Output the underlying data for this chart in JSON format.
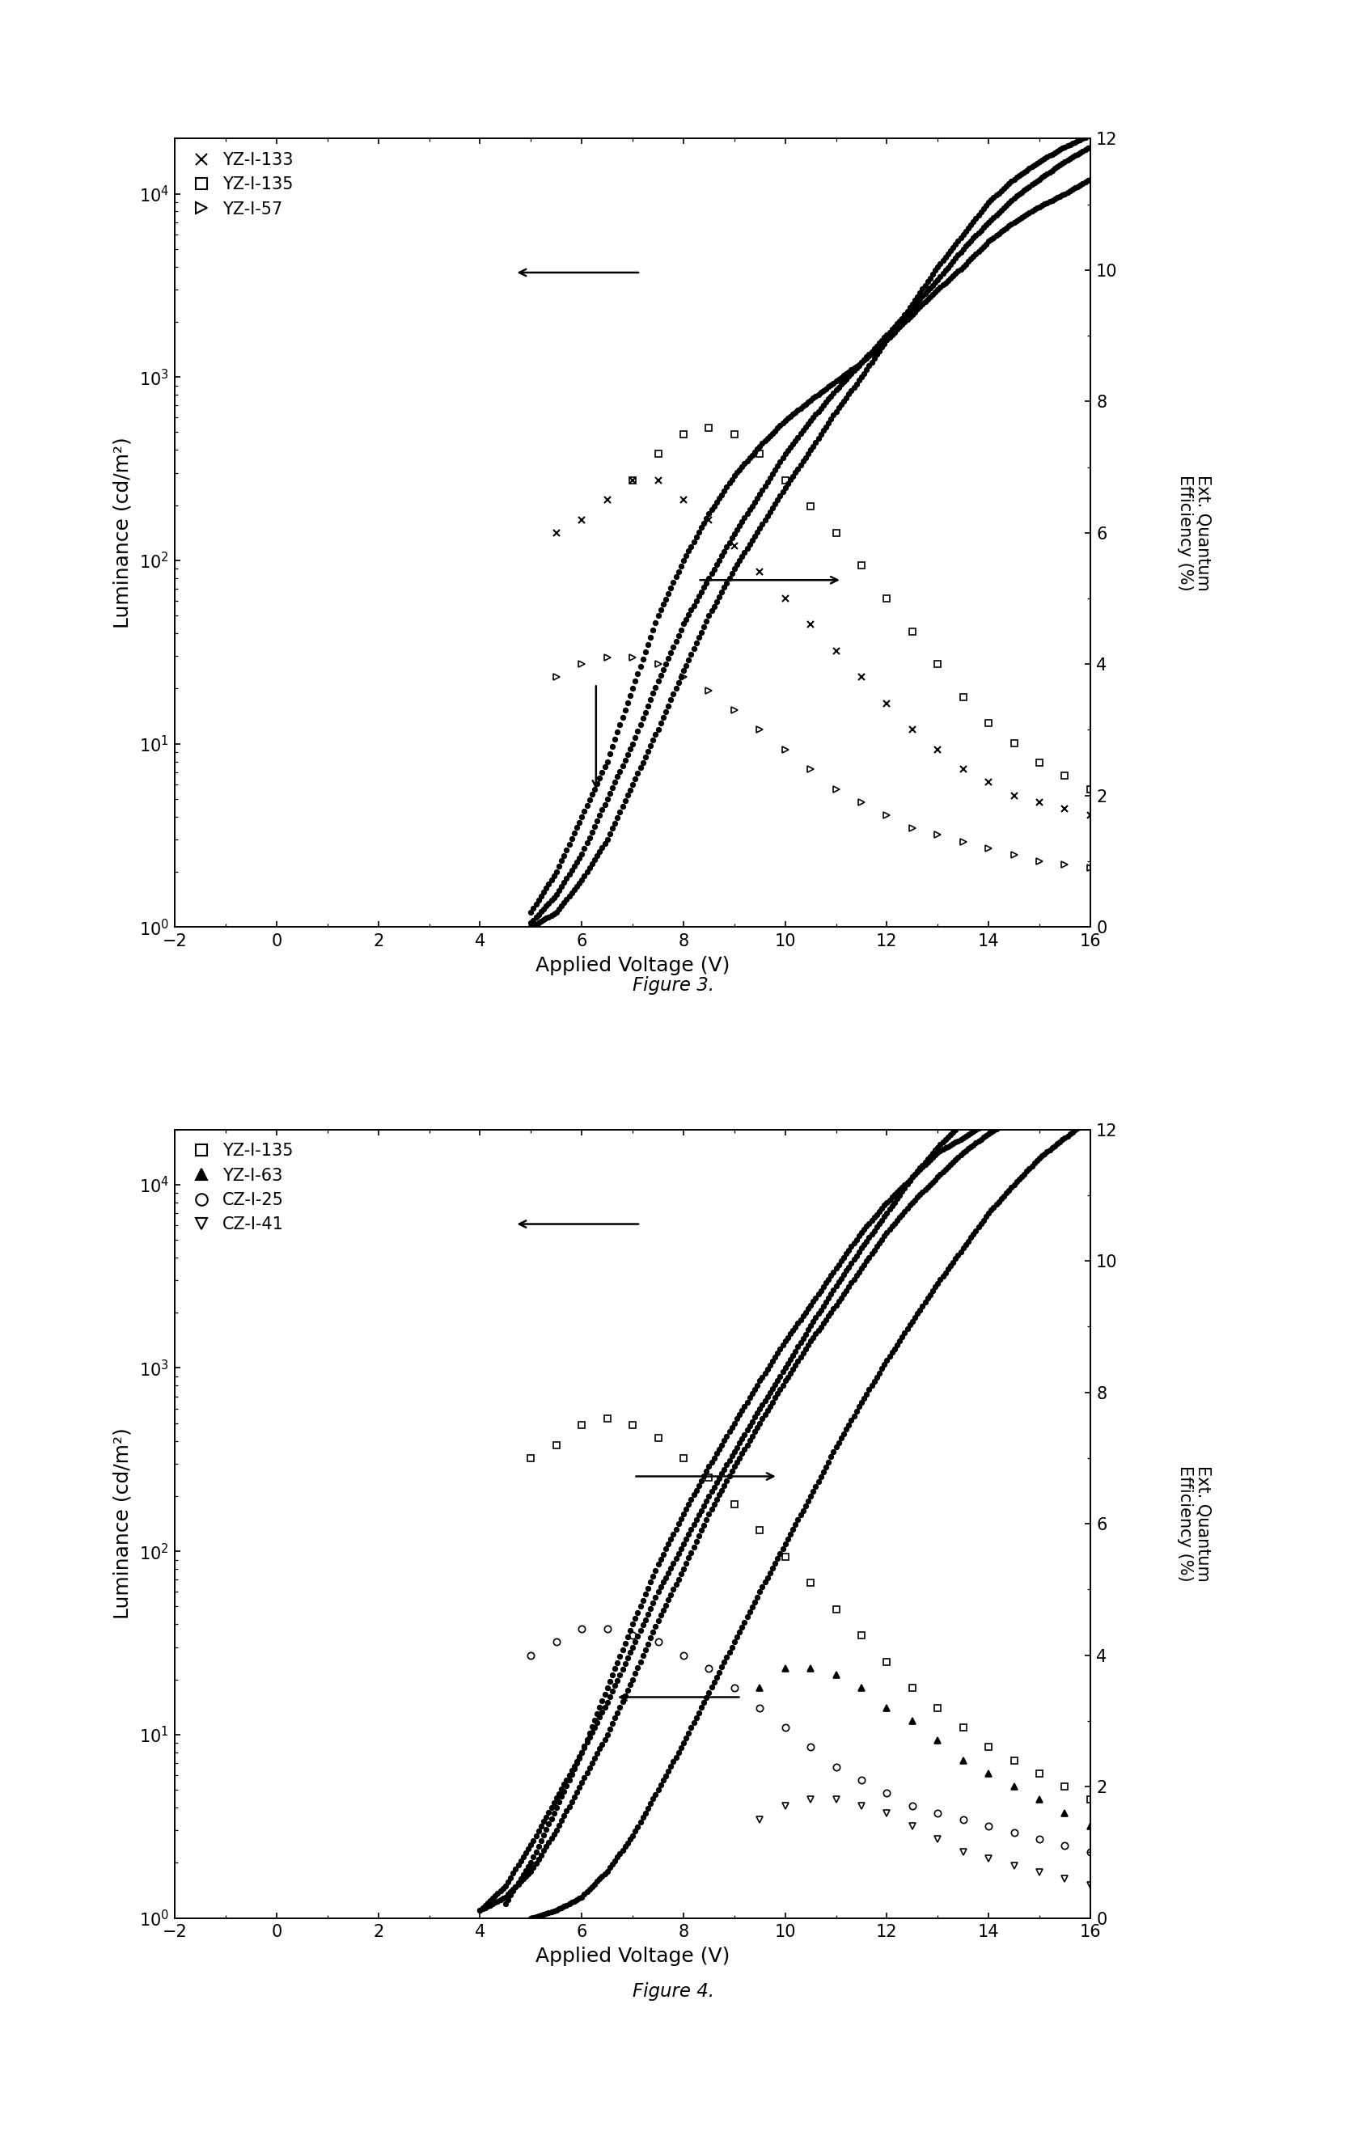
{
  "fig3": {
    "title": "Figure 3.",
    "xlabel": "Applied Voltage (V)",
    "ylabel_left": "Luminance (cd/m²)",
    "ylabel_right": "Ext. Quantum\nEfficiency (%)",
    "xlim": [
      -2,
      16
    ],
    "ylim_left": [
      1,
      20000
    ],
    "ylim_right": [
      0,
      12
    ],
    "legend_labels": [
      "YZ-I-133",
      "YZ-I-135",
      "YZ-I-57"
    ],
    "lum_133_x": [
      5.0,
      5.5,
      6.0,
      6.5,
      7.0,
      7.5,
      8.0,
      8.5,
      9.0,
      9.5,
      10.0,
      10.5,
      11.0,
      11.5,
      12.0,
      12.5,
      13.0,
      13.5,
      14.0,
      14.5,
      15.0,
      15.5,
      16.0
    ],
    "lum_133_y": [
      1.2,
      2.0,
      4.0,
      8.0,
      20,
      50,
      100,
      180,
      290,
      420,
      580,
      750,
      950,
      1200,
      1600,
      2200,
      3000,
      4000,
      5500,
      7000,
      8500,
      10000,
      12000
    ],
    "lum_135_x": [
      5.0,
      5.5,
      6.0,
      6.5,
      7.0,
      7.5,
      8.0,
      8.5,
      9.0,
      9.5,
      10.0,
      10.5,
      11.0,
      11.5,
      12.0,
      12.5,
      13.0,
      13.5,
      14.0,
      14.5,
      15.0,
      15.5,
      16.0
    ],
    "lum_135_y": [
      1.05,
      1.5,
      2.5,
      5.0,
      10,
      22,
      45,
      80,
      140,
      230,
      380,
      580,
      850,
      1200,
      1700,
      2400,
      3400,
      5000,
      7000,
      9500,
      12000,
      15000,
      18000
    ],
    "lum_57_x": [
      5.0,
      5.5,
      6.0,
      6.5,
      7.0,
      7.5,
      8.0,
      8.5,
      9.0,
      9.5,
      10.0,
      10.5,
      11.0,
      11.5,
      12.0,
      12.5,
      13.0,
      13.5,
      14.0,
      14.5,
      15.0,
      15.5,
      16.0
    ],
    "lum_57_y": [
      1.0,
      1.2,
      1.8,
      3.0,
      6.0,
      12,
      25,
      50,
      90,
      150,
      250,
      400,
      650,
      1000,
      1600,
      2500,
      4000,
      6000,
      9000,
      12000,
      15000,
      18000,
      21000
    ],
    "eqe_133_x": [
      5.5,
      6.0,
      6.5,
      7.0,
      7.5,
      8.0,
      8.5,
      9.0,
      9.5,
      10.0,
      10.5,
      11.0,
      11.5,
      12.0,
      12.5,
      13.0,
      13.5,
      14.0,
      14.5,
      15.0,
      15.5,
      16.0
    ],
    "eqe_133_y": [
      6.0,
      6.2,
      6.5,
      6.8,
      6.8,
      6.5,
      6.2,
      5.8,
      5.4,
      5.0,
      4.6,
      4.2,
      3.8,
      3.4,
      3.0,
      2.7,
      2.4,
      2.2,
      2.0,
      1.9,
      1.8,
      1.7
    ],
    "eqe_135_x": [
      7.0,
      7.5,
      8.0,
      8.5,
      9.0,
      9.5,
      10.0,
      10.5,
      11.0,
      11.5,
      12.0,
      12.5,
      13.0,
      13.5,
      14.0,
      14.5,
      15.0,
      15.5,
      16.0
    ],
    "eqe_135_y": [
      6.8,
      7.2,
      7.5,
      7.6,
      7.5,
      7.2,
      6.8,
      6.4,
      6.0,
      5.5,
      5.0,
      4.5,
      4.0,
      3.5,
      3.1,
      2.8,
      2.5,
      2.3,
      2.1
    ],
    "eqe_57_x": [
      5.5,
      6.0,
      6.5,
      7.0,
      7.5,
      8.0,
      8.5,
      9.0,
      9.5,
      10.0,
      10.5,
      11.0,
      11.5,
      12.0,
      12.5,
      13.0,
      13.5,
      14.0,
      14.5,
      15.0,
      15.5,
      16.0
    ],
    "eqe_57_y": [
      3.8,
      4.0,
      4.1,
      4.1,
      4.0,
      3.8,
      3.6,
      3.3,
      3.0,
      2.7,
      2.4,
      2.1,
      1.9,
      1.7,
      1.5,
      1.4,
      1.3,
      1.2,
      1.1,
      1.0,
      0.95,
      0.9
    ]
  },
  "fig4": {
    "title": "Figure 4.",
    "xlabel": "Applied Voltage (V)",
    "ylabel_left": "Luminance (cd/m²)",
    "ylabel_right": "Ext. Quantum\nEfficiency (%)",
    "xlim": [
      -2,
      16
    ],
    "ylim_left": [
      1,
      20000
    ],
    "ylim_right": [
      0,
      12
    ],
    "legend_labels": [
      "YZ-I-135",
      "YZ-I-63",
      "CZ-I-25",
      "CZ-I-41"
    ],
    "lum_135_x": [
      4.5,
      5.0,
      5.5,
      6.0,
      6.5,
      7.0,
      7.5,
      8.0,
      8.5,
      9.0,
      9.5,
      10.0,
      10.5,
      11.0,
      11.5,
      12.0,
      12.5,
      13.0,
      13.5,
      14.0,
      14.5,
      15.0,
      15.5,
      16.0
    ],
    "lum_135_y": [
      1.2,
      2.0,
      4.0,
      8.0,
      18,
      40,
      85,
      160,
      290,
      500,
      850,
      1400,
      2200,
      3500,
      5500,
      8000,
      11000,
      15000,
      18000,
      22000,
      26000,
      30000,
      35000,
      40000
    ],
    "lum_63_x": [
      4.0,
      4.5,
      5.0,
      5.5,
      6.0,
      6.5,
      7.0,
      7.5,
      8.0,
      8.5,
      9.0,
      9.5,
      10.0,
      10.5,
      11.0,
      11.5,
      12.0,
      12.5,
      13.0,
      13.5,
      14.0,
      14.5,
      15.0,
      15.5,
      16.0
    ],
    "lum_63_y": [
      1.1,
      1.5,
      2.5,
      4.5,
      8.0,
      15,
      30,
      60,
      110,
      200,
      350,
      600,
      1000,
      1700,
      2800,
      4500,
      7000,
      11000,
      16000,
      22000,
      29000,
      36000,
      43000,
      50000,
      58000
    ],
    "lum_25_x": [
      4.0,
      4.5,
      5.0,
      5.5,
      6.0,
      6.5,
      7.0,
      7.5,
      8.0,
      8.5,
      9.0,
      9.5,
      10.0,
      10.5,
      11.0,
      11.5,
      12.0,
      12.5,
      13.0,
      13.5,
      14.0,
      14.5,
      15.0,
      15.5,
      16.0
    ],
    "lum_25_y": [
      1.1,
      1.3,
      1.8,
      3.0,
      5.5,
      10,
      20,
      42,
      80,
      160,
      290,
      500,
      850,
      1400,
      2200,
      3500,
      5500,
      8000,
      11000,
      15000,
      19000,
      23000,
      27000,
      31000,
      35000
    ],
    "lum_41_x": [
      5.0,
      5.5,
      6.0,
      6.5,
      7.0,
      7.5,
      8.0,
      8.5,
      9.0,
      9.5,
      10.0,
      10.5,
      11.0,
      11.5,
      12.0,
      12.5,
      13.0,
      13.5,
      14.0,
      14.5,
      15.0,
      15.5,
      16.0
    ],
    "lum_41_y": [
      1.0,
      1.1,
      1.3,
      1.8,
      2.8,
      5.0,
      9.0,
      17,
      32,
      60,
      110,
      200,
      370,
      650,
      1100,
      1800,
      2900,
      4500,
      7000,
      10000,
      14000,
      18000,
      23000
    ],
    "eqe_135_x": [
      5.0,
      5.5,
      6.0,
      6.5,
      7.0,
      7.5,
      8.0,
      8.5,
      9.0,
      9.5,
      10.0,
      10.5,
      11.0,
      11.5,
      12.0,
      12.5,
      13.0,
      13.5,
      14.0,
      14.5,
      15.0,
      15.5,
      16.0
    ],
    "eqe_135_y": [
      7.0,
      7.2,
      7.5,
      7.6,
      7.5,
      7.3,
      7.0,
      6.7,
      6.3,
      5.9,
      5.5,
      5.1,
      4.7,
      4.3,
      3.9,
      3.5,
      3.2,
      2.9,
      2.6,
      2.4,
      2.2,
      2.0,
      1.8
    ],
    "eqe_63_x": [
      9.5,
      10.0,
      10.5,
      11.0,
      11.5,
      12.0,
      12.5,
      13.0,
      13.5,
      14.0,
      14.5,
      15.0,
      15.5,
      16.0
    ],
    "eqe_63_y": [
      3.5,
      3.8,
      3.8,
      3.7,
      3.5,
      3.2,
      3.0,
      2.7,
      2.4,
      2.2,
      2.0,
      1.8,
      1.6,
      1.4
    ],
    "eqe_25_x": [
      5.0,
      5.5,
      6.0,
      6.5,
      7.0,
      7.5,
      8.0,
      8.5,
      9.0,
      9.5,
      10.0,
      10.5,
      11.0,
      11.5,
      12.0,
      12.5,
      13.0,
      13.5,
      14.0,
      14.5,
      15.0,
      15.5,
      16.0
    ],
    "eqe_25_y": [
      4.0,
      4.2,
      4.4,
      4.4,
      4.3,
      4.2,
      4.0,
      3.8,
      3.5,
      3.2,
      2.9,
      2.6,
      2.3,
      2.1,
      1.9,
      1.7,
      1.6,
      1.5,
      1.4,
      1.3,
      1.2,
      1.1,
      1.0
    ],
    "eqe_41_x": [
      9.5,
      10.0,
      10.5,
      11.0,
      11.5,
      12.0,
      12.5,
      13.0,
      13.5,
      14.0,
      14.5,
      15.0,
      15.5,
      16.0
    ],
    "eqe_41_y": [
      1.5,
      1.7,
      1.8,
      1.8,
      1.7,
      1.6,
      1.4,
      1.2,
      1.0,
      0.9,
      0.8,
      0.7,
      0.6,
      0.5
    ]
  }
}
